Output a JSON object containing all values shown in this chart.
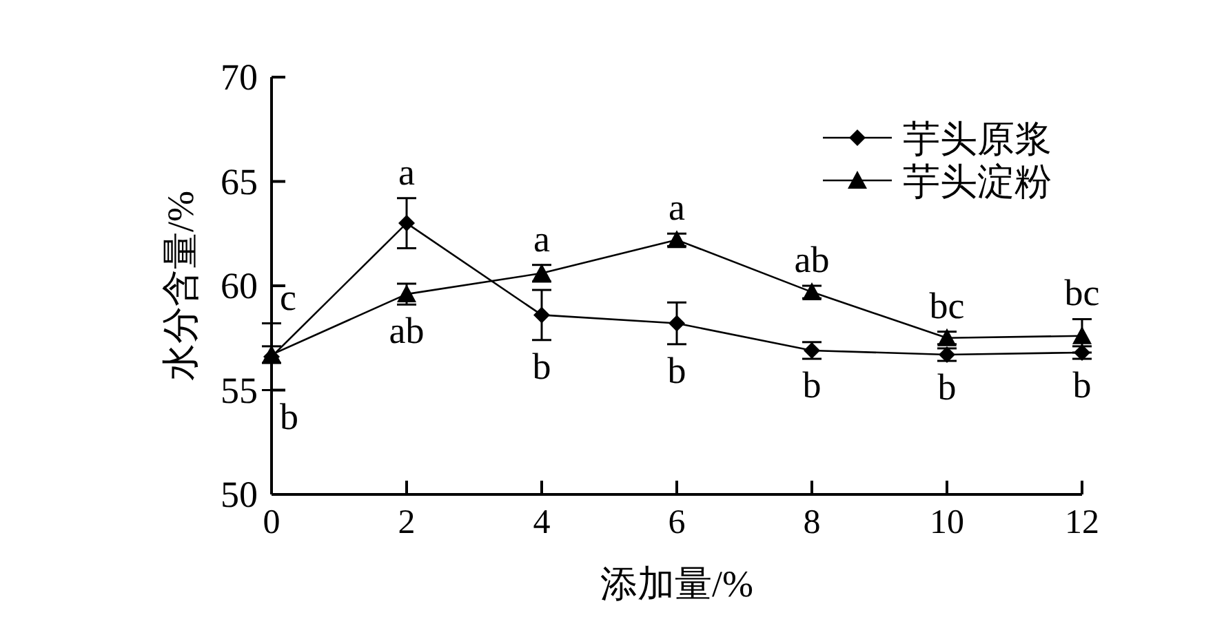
{
  "chart_data": {
    "type": "line",
    "xlabel": "添加量/%",
    "ylabel": "水分含量/%",
    "x": [
      0,
      2,
      4,
      6,
      8,
      10,
      12
    ],
    "xlim": [
      0,
      12
    ],
    "xticks": [
      0,
      2,
      4,
      6,
      8,
      10,
      12
    ],
    "ylim": [
      50,
      70
    ],
    "yticks": [
      50,
      55,
      60,
      65,
      70
    ],
    "grid": false,
    "legend": "top right",
    "line_style": "solid",
    "series": [
      {
        "name": "芋头原浆",
        "color": "#000000",
        "marker": "diamond",
        "values": [
          56.6,
          63.0,
          58.6,
          58.2,
          56.9,
          56.7,
          56.8
        ],
        "errors": [
          1.6,
          1.2,
          1.2,
          1.0,
          0.4,
          0.3,
          0.3
        ]
      },
      {
        "name": "芋头淀粉",
        "color": "#000000",
        "marker": "triangle",
        "values": [
          56.7,
          59.6,
          60.6,
          62.2,
          59.7,
          57.5,
          57.6
        ],
        "errors": [
          0.4,
          0.5,
          0.4,
          0.3,
          0.3,
          0.3,
          0.8
        ]
      }
    ],
    "annotations": [
      {
        "text": "c",
        "x": 0,
        "y": 56.7
      },
      {
        "text": "b",
        "x": 0,
        "y": 56.6
      },
      {
        "text": "a",
        "x": 2,
        "y": 63.0
      },
      {
        "text": "ab",
        "x": 2,
        "y": 59.6
      },
      {
        "text": "a",
        "x": 4,
        "y": 60.6
      },
      {
        "text": "b",
        "x": 4,
        "y": 58.6
      },
      {
        "text": "a",
        "x": 6,
        "y": 62.2
      },
      {
        "text": "b",
        "x": 6,
        "y": 58.2
      },
      {
        "text": "ab",
        "x": 8,
        "y": 59.7
      },
      {
        "text": "b",
        "x": 8,
        "y": 56.9
      },
      {
        "text": "bc",
        "x": 10,
        "y": 57.5
      },
      {
        "text": "b",
        "x": 10,
        "y": 56.7
      },
      {
        "text": "bc",
        "x": 12,
        "y": 57.6
      },
      {
        "text": "b",
        "x": 12,
        "y": 56.8
      }
    ]
  }
}
